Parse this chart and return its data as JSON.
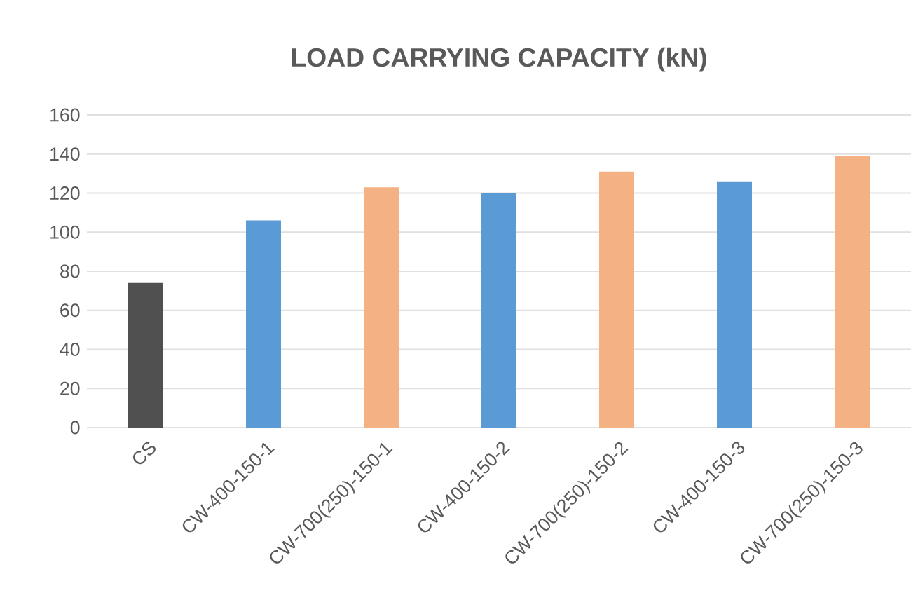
{
  "chart_data": {
    "type": "bar",
    "title": "LOAD CARRYING CAPACITY (kN)",
    "categories": [
      "CS",
      "CW-400-150-1",
      "CW-700(250)-150-1",
      "CW-400-150-2",
      "CW-700(250)-150-2",
      "CW-400-150-3",
      "CW-700(250)-150-3"
    ],
    "values": [
      74,
      106,
      123,
      120,
      131,
      126,
      139
    ],
    "colors": [
      "#505050",
      "#5b9bd5",
      "#f4b183",
      "#5b9bd5",
      "#f4b183",
      "#5b9bd5",
      "#f4b183"
    ],
    "ylim": [
      0,
      160
    ],
    "yticks": [
      0,
      20,
      40,
      60,
      80,
      100,
      120,
      140,
      160
    ],
    "grid": "y"
  }
}
